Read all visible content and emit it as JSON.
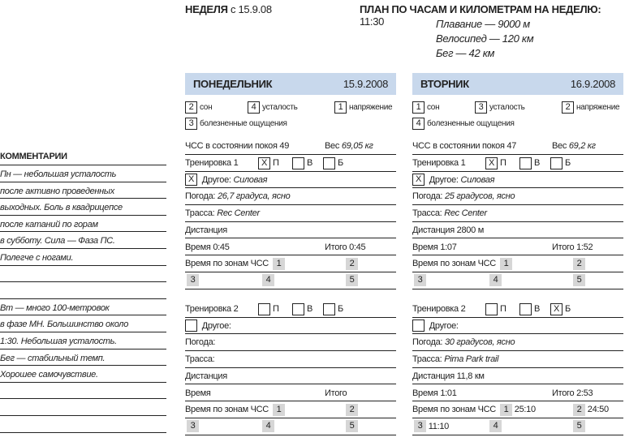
{
  "header": {
    "week_label": "НЕДЕЛЯ",
    "week_from": "с 15.9.08",
    "plan_title": "ПЛАН ПО ЧАСАМ И КИЛОМЕТРАМ НА НЕДЕЛЮ:",
    "plan_total": "11:30",
    "plan_items": [
      "Плавание — 9000 м",
      "Велосипед — 120 км",
      "Бег — 42 км"
    ]
  },
  "comments": {
    "title": "КОММЕНТАРИИ",
    "lines": [
      "Пн — небольшая усталость",
      " после активно проведенных",
      "выходных. Боль в квадрицепсе",
      "после катаний по горам",
      "в субботу. Сила — Фаза ПС.",
      "Полегче с ногами.",
      "",
      "",
      "Вт — много 100-метровок",
      "в фазе МН. Большинство около",
      "1:30. Небольшая усталость.",
      "Бег — стабильный темп.",
      "Хорошее самочувствие.",
      "",
      "",
      ""
    ]
  },
  "labels": {
    "sleep": "сон",
    "fatigue": "усталость",
    "stress": "напряжение",
    "soreness": "болезненные ощущения",
    "swim": "П",
    "bike": "В",
    "run": "Б",
    "other": "Другое:",
    "weather": "Погода:",
    "route": "Трасса:",
    "distance": "Дистанция",
    "time": "Время",
    "total": "Итого",
    "zones": "Время по зонам ЧСС",
    "rhr": "ЧСС в состоянии покоя",
    "weight": "Вес"
  },
  "accent_color": "#c8d8ec",
  "days": [
    {
      "name": "ПОНЕДЕЛЬНИК",
      "date": "15.9.2008",
      "sleep": "2",
      "fatigue": "4",
      "stress": "1",
      "soreness": "3",
      "rhr": "49",
      "weight": "69,05 кг",
      "workouts": [
        {
          "title": "Тренировка 1",
          "swim": "X",
          "bike": "",
          "run": "",
          "other_check": "X",
          "other": "Силовая",
          "weather": "26,7 градуса, ясно",
          "route": "Rec Center",
          "distance": "",
          "time": "0:45",
          "total": "0:45",
          "z1": "",
          "z2": "",
          "z3": "",
          "z4": "",
          "z5": ""
        },
        {
          "title": "Тренировка 2",
          "swim": "",
          "bike": "",
          "run": "",
          "other_check": "",
          "other": "",
          "weather": "",
          "route": "",
          "distance": "",
          "time": "",
          "total": "",
          "z1": "",
          "z2": "",
          "z3": "",
          "z4": "",
          "z5": ""
        }
      ]
    },
    {
      "name": "ВТОРНИК",
      "date": "16.9.2008",
      "sleep": "1",
      "fatigue": "3",
      "stress": "2",
      "soreness": "4",
      "rhr": "47",
      "weight": "69,2 кг",
      "workouts": [
        {
          "title": "Тренировка 1",
          "swim": "X",
          "bike": "",
          "run": "",
          "other_check": "X",
          "other": "Силовая",
          "weather": "25 градусов, ясно",
          "route": "Rec Center",
          "distance": "2800 м",
          "time": "1:07",
          "total": "1:52",
          "z1": "",
          "z2": "",
          "z3": "",
          "z4": "",
          "z5": ""
        },
        {
          "title": "Тренировка 2",
          "swim": "",
          "bike": "",
          "run": "X",
          "other_check": "",
          "other": "",
          "weather": "30 градусов, ясно",
          "route": "Pima Park trail",
          "distance": "11,8 км",
          "time": "1:01",
          "total": "2:53",
          "z1": "25:10",
          "z2": "24:50",
          "z3": "11:10",
          "z4": "",
          "z5": ""
        }
      ]
    }
  ]
}
